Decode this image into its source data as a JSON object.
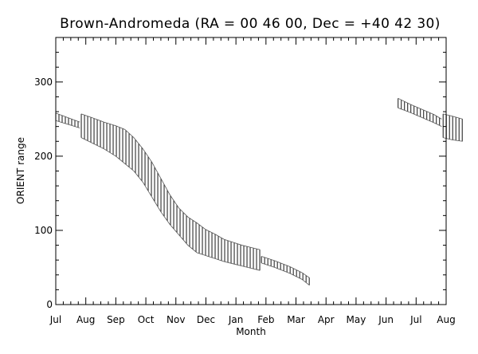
{
  "chart_data": {
    "type": "area",
    "title": "Brown-Andromeda (RA = 00 46 00, Dec = +40 42 30)",
    "xlabel": "Month",
    "ylabel": "ORIENT range",
    "categories": [
      "Jul",
      "Aug",
      "Sep",
      "Oct",
      "Nov",
      "Dec",
      "Jan",
      "Feb",
      "Mar",
      "Apr",
      "May",
      "Jun",
      "Jul",
      "Aug"
    ],
    "ylim": [
      0,
      360
    ],
    "yticks": [
      "0",
      "100",
      "200",
      "300"
    ],
    "grid": false,
    "series": [
      {
        "segments": [
          {
            "x": [
              0.0,
              0.4,
              0.8
            ],
            "low": [
              248,
              243,
              238
            ],
            "high": [
              258,
              252,
              246
            ]
          },
          {
            "x": [
              0.85,
              1.2,
              1.6,
              2.0,
              2.3,
              2.6,
              2.9,
              3.2,
              3.5,
              3.8,
              4.1,
              4.4,
              4.7,
              5.0,
              5.3,
              5.6,
              5.9,
              6.2,
              6.5,
              6.8
            ],
            "low": [
              225,
              218,
              210,
              200,
              190,
              180,
              165,
              145,
              125,
              108,
              94,
              80,
              70,
              66,
              62,
              58,
              55,
              52,
              49,
              46
            ],
            "high": [
              257,
              252,
              246,
              241,
              236,
              225,
              210,
              192,
              170,
              148,
              130,
              118,
              110,
              101,
              95,
              88,
              84,
              80,
              77,
              74
            ]
          },
          {
            "x": [
              6.85,
              7.3,
              7.8,
              8.2,
              8.45
            ],
            "low": [
              56,
              50,
              42,
              34,
              26
            ],
            "high": [
              65,
              59,
              51,
              43,
              36
            ]
          },
          {
            "x": [
              11.4,
              11.8,
              12.2,
              12.6,
              12.85
            ],
            "low": [
              265,
              259,
              252,
              245,
              240
            ],
            "high": [
              278,
              270,
              263,
              256,
              250
            ]
          },
          {
            "x": [
              12.9,
              13.2,
              13.55
            ],
            "low": [
              225,
              222,
              220
            ],
            "high": [
              257,
              254,
              250
            ]
          }
        ]
      }
    ]
  }
}
